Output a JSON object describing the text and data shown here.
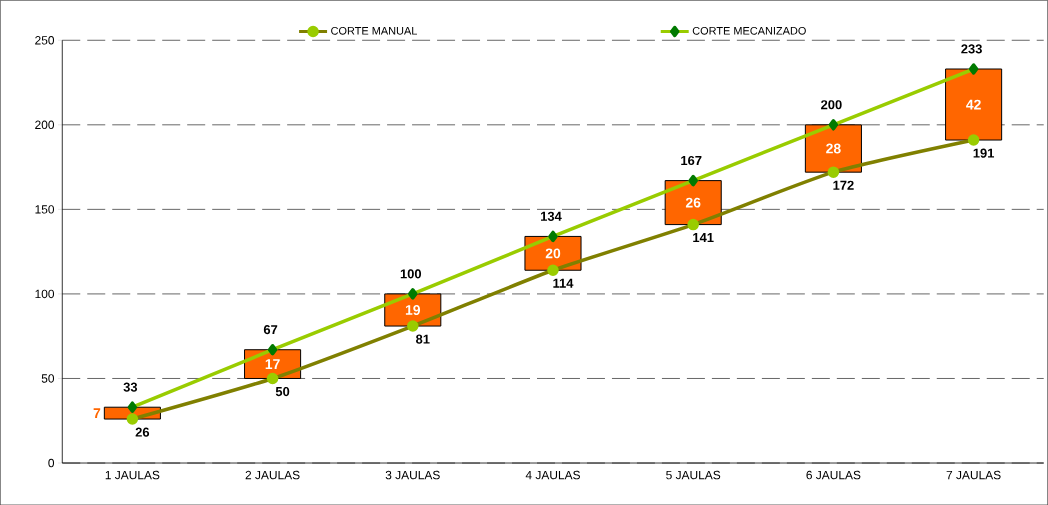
{
  "chart_data": {
    "type": "line",
    "categories": [
      "1 JAULAS",
      "2 JAULAS",
      "3 JAULAS",
      "4 JAULAS",
      "5 JAULAS",
      "6 JAULAS",
      "7 JAULAS"
    ],
    "series": [
      {
        "name": "CORTE MANUAL",
        "color": "#808000",
        "marker": "circle",
        "values": [
          26,
          50,
          81,
          114,
          141,
          172,
          191
        ]
      },
      {
        "name": "CORTE MECANIZADO",
        "color": "#99cc00",
        "marker": "diamond",
        "values": [
          33,
          67,
          100,
          134,
          167,
          200,
          233
        ]
      },
      {
        "type": "bar",
        "color": "#ff6600",
        "base": [
          26,
          50,
          81,
          114,
          141,
          172,
          191
        ],
        "values": [
          7,
          17,
          19,
          20,
          26,
          28,
          42
        ]
      }
    ],
    "ylim": [
      0,
      250
    ],
    "yticks": [
      0,
      50,
      100,
      150,
      200,
      250
    ],
    "grid": "y",
    "legend": "top",
    "data_labels": true
  }
}
